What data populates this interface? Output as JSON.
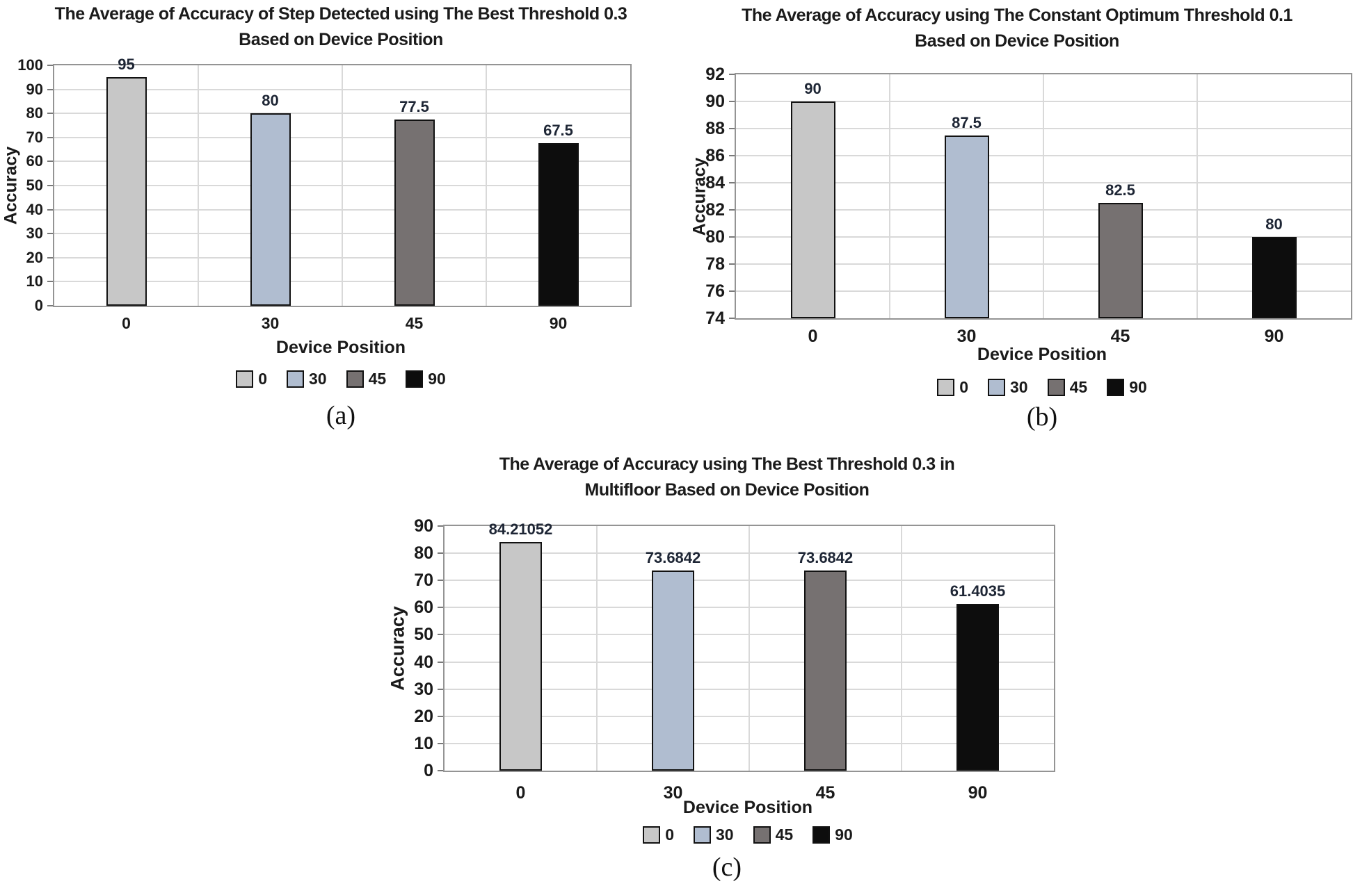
{
  "figure": {
    "background": "#ffffff",
    "text_color": "#1a1a1a",
    "data_label_color": "#1e2635",
    "gridline_color": "#d9d9d9",
    "plot_border_color": "#949494",
    "bar_border_color": "#121212"
  },
  "chart_data": [
    {
      "type": "bar",
      "panel": "(a)",
      "title": "The Average of Accuracy of Step Detected using The Best Threshold 0.3 Based on Device Position",
      "title_lines": [
        "The Average of Accuracy of Step Detected using The Best Threshold 0.3",
        "Based on Device Position"
      ],
      "categories": [
        "0",
        "30",
        "45",
        "90"
      ],
      "values": [
        95,
        80,
        77.5,
        67.5
      ],
      "value_labels": [
        "95",
        "80",
        "77.5",
        "67.5"
      ],
      "xlabel": "Device Position",
      "ylabel": "Accuracy",
      "ylim": [
        0,
        100
      ],
      "ytick_step": 10,
      "grid": true,
      "legend_position": "bottom",
      "legend": [
        "0",
        "30",
        "45",
        "90"
      ],
      "bar_colors": [
        "#c7c7c7",
        "#b0bdd0",
        "#767171",
        "#0d0d0d"
      ]
    },
    {
      "type": "bar",
      "panel": "(b)",
      "title": "The Average of Accuracy using The Constant Optimum Threshold 0.1 Based on Device Position",
      "title_lines": [
        "The Average of Accuracy using The Constant Optimum Threshold 0.1",
        "Based on Device Position"
      ],
      "categories": [
        "0",
        "30",
        "45",
        "90"
      ],
      "values": [
        90,
        87.5,
        82.5,
        80
      ],
      "value_labels": [
        "90",
        "87.5",
        "82.5",
        "80"
      ],
      "xlabel": "Device Position",
      "ylabel": "Accuracy",
      "ylim": [
        74,
        92
      ],
      "ytick_step": 2,
      "grid": true,
      "legend_position": "bottom",
      "legend": [
        "0",
        "30",
        "45",
        "90"
      ],
      "bar_colors": [
        "#c7c7c7",
        "#b0bdd0",
        "#767171",
        "#0d0d0d"
      ]
    },
    {
      "type": "bar",
      "panel": "(c)",
      "title": "The Average of Accuracy using The Best Threshold 0.3 in Multifloor Based on Device Position",
      "title_lines": [
        "The Average of Accuracy using The Best Threshold 0.3 in",
        "Multifloor Based on Device Position"
      ],
      "categories": [
        "0",
        "30",
        "45",
        "90"
      ],
      "values": [
        84.21052,
        73.6842,
        73.6842,
        61.4035
      ],
      "value_labels": [
        "84.21052",
        "73.6842",
        "73.6842",
        "61.4035"
      ],
      "xlabel": "Device Position",
      "ylabel": "Accuracy",
      "ylim": [
        0,
        90
      ],
      "ytick_step": 10,
      "grid": true,
      "legend_position": "bottom",
      "legend": [
        "0",
        "30",
        "45",
        "90"
      ],
      "bar_colors": [
        "#c7c7c7",
        "#b0bdd0",
        "#767171",
        "#0d0d0d"
      ]
    }
  ]
}
